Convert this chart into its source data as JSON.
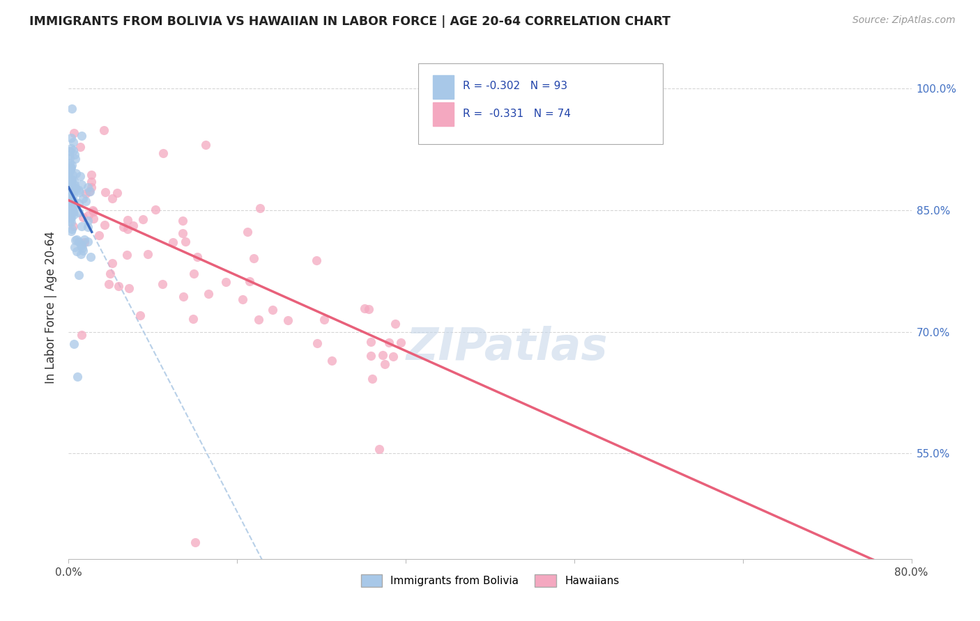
{
  "title": "IMMIGRANTS FROM BOLIVIA VS HAWAIIAN IN LABOR FORCE | AGE 20-64 CORRELATION CHART",
  "source": "Source: ZipAtlas.com",
  "ylabel": "In Labor Force | Age 20-64",
  "legend_label_1": "R = -0.302   N = 93",
  "legend_label_2": "R =  -0.331   N = 74",
  "legend_cat1": "Immigrants from Bolivia",
  "legend_cat2": "Hawaiians",
  "color_bolivia": "#a8c8e8",
  "color_hawaii": "#f4a8c0",
  "trendline_bolivia_color": "#3a6abf",
  "trendline_hawaii_color": "#e8607a",
  "trendline_dashed_color": "#b8d0e8",
  "watermark_color": "#c8d8ea",
  "xlim": [
    0.0,
    0.8
  ],
  "ylim": [
    0.42,
    1.04
  ],
  "y_ticks": [
    0.55,
    0.7,
    0.85,
    1.0
  ],
  "x_ticks": [
    0.0,
    0.16,
    0.32,
    0.48,
    0.64,
    0.8
  ],
  "figsize": [
    14.06,
    8.92
  ],
  "dpi": 100,
  "bolivia_intercept": 0.878,
  "bolivia_slope": -2.5,
  "hawaii_intercept": 0.862,
  "hawaii_slope": -0.58,
  "dashed_intercept": 0.878,
  "dashed_slope": -2.5
}
